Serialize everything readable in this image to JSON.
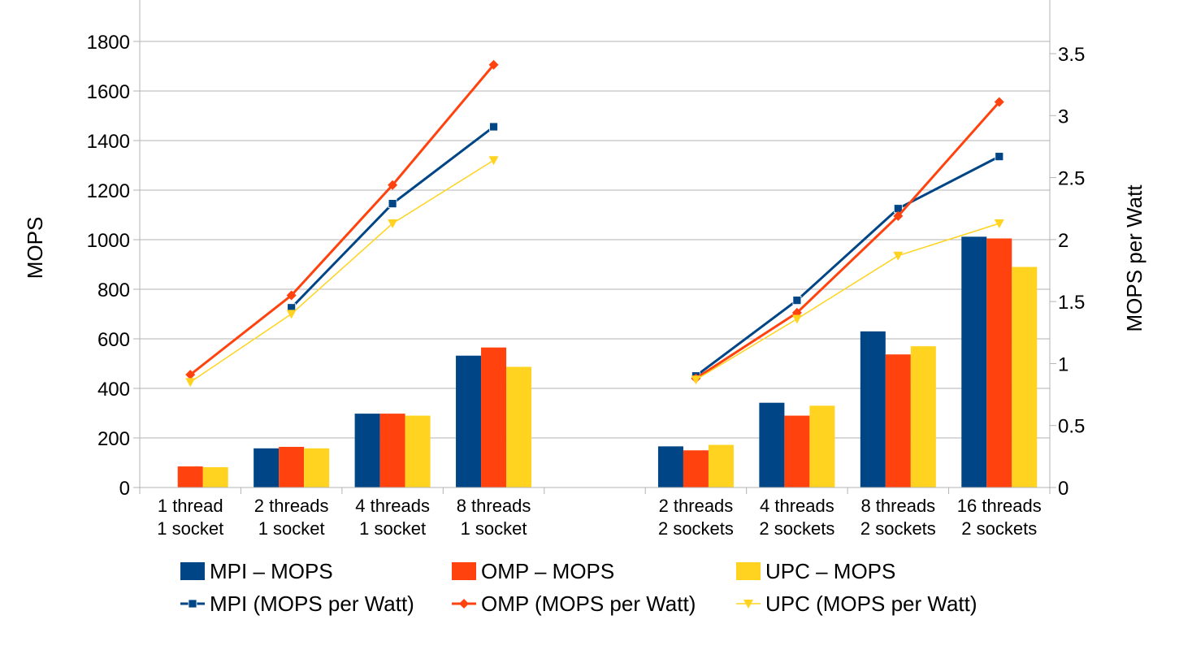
{
  "chart_data": {
    "type": "bar",
    "categories": [
      [
        "1 thread",
        "1 socket"
      ],
      [
        "2 threads",
        "1 socket"
      ],
      [
        "4 threads",
        "1 socket"
      ],
      [
        "8 threads",
        "1 socket"
      ],
      [
        "",
        ""
      ],
      [
        "2 threads",
        "2 sockets"
      ],
      [
        "4 threads",
        "2 sockets"
      ],
      [
        "8 threads",
        "2 sockets"
      ],
      [
        "16 threads",
        "2 sockets"
      ]
    ],
    "ylabel": "MOPS",
    "ylim": [
      0,
      1800
    ],
    "yticks": [
      "0",
      "200",
      "400",
      "600",
      "800",
      "1000",
      "1200",
      "1400",
      "1600",
      "1800"
    ],
    "y2label": "MOPS per Watt",
    "y2lim": [
      0,
      3.5
    ],
    "y2ticks": [
      "0",
      "0.5",
      "1",
      "1.5",
      "2",
      "2.5",
      "3",
      "3.5"
    ],
    "grid": true,
    "legend_position": "bottom",
    "bar_series": [
      {
        "name": "MPI – MOPS",
        "color": "#004586",
        "values": [
          null,
          158,
          298,
          532,
          null,
          166,
          342,
          630,
          1012
        ]
      },
      {
        "name": "OMP – MOPS",
        "color": "#ff420e",
        "values": [
          85,
          164,
          298,
          565,
          null,
          150,
          290,
          537,
          1005
        ]
      },
      {
        "name": "UPC – MOPS",
        "color": "#ffd320",
        "values": [
          82,
          158,
          290,
          487,
          null,
          172,
          330,
          570,
          890
        ]
      }
    ],
    "line_series": [
      {
        "name": "MPI (MOPS per Watt)",
        "color": "#004586",
        "marker": "square",
        "values": [
          null,
          1.45,
          2.29,
          2.91,
          null,
          0.9,
          1.51,
          2.25,
          2.67
        ]
      },
      {
        "name": "OMP (MOPS per Watt)",
        "color": "#ff420e",
        "marker": "diamond",
        "values": [
          0.91,
          1.55,
          2.44,
          3.41,
          null,
          0.88,
          1.41,
          2.19,
          3.11
        ]
      },
      {
        "name": "UPC (MOPS per Watt)",
        "color": "#ffd320",
        "marker": "triangle-down",
        "values": [
          0.85,
          1.4,
          2.13,
          2.64,
          null,
          0.87,
          1.36,
          1.87,
          2.13
        ]
      }
    ]
  }
}
